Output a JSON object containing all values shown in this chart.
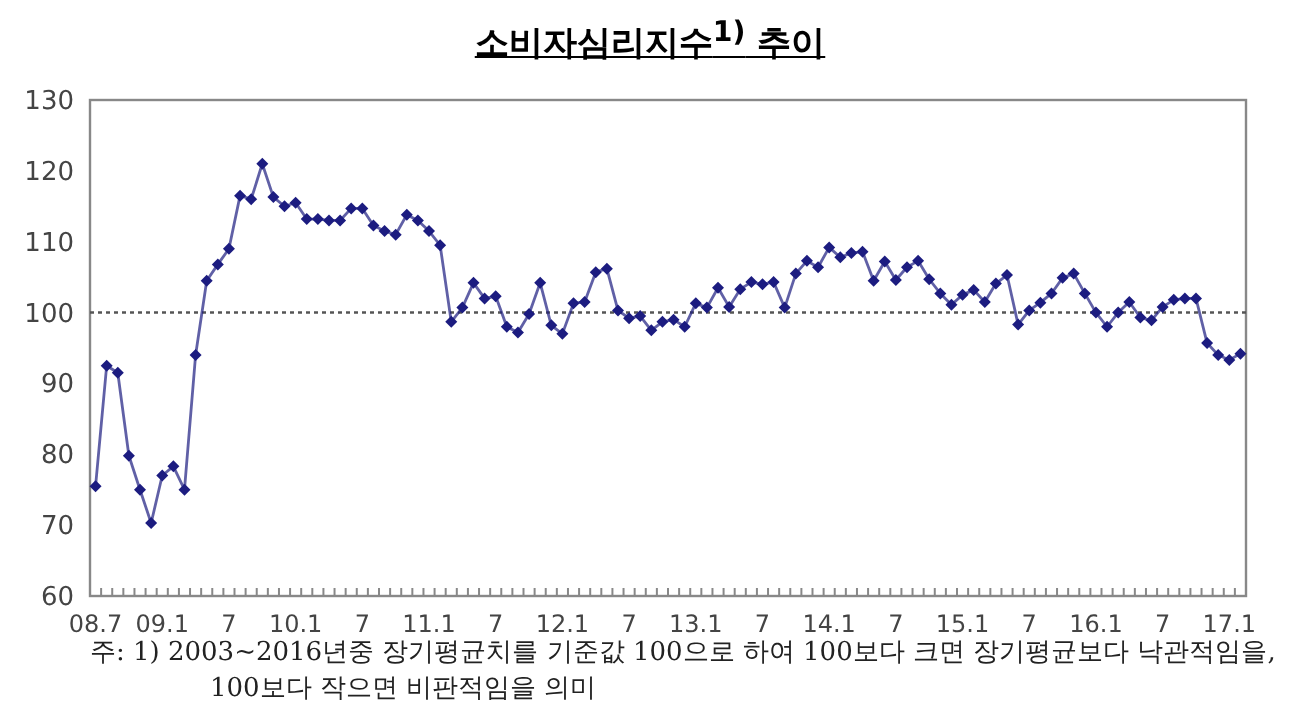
{
  "chart_data": {
    "type": "line",
    "title": "소비자심리지수$^{1)}$ 추이",
    "categories": [
      "08.7",
      null,
      null,
      null,
      null,
      null,
      "09.1",
      null,
      null,
      null,
      null,
      null,
      "7",
      null,
      null,
      null,
      null,
      null,
      "10.1",
      null,
      null,
      null,
      null,
      null,
      "7",
      null,
      null,
      null,
      null,
      null,
      "11.1",
      null,
      null,
      null,
      null,
      null,
      "7",
      null,
      null,
      null,
      null,
      null,
      "12.1",
      null,
      null,
      null,
      null,
      null,
      "7",
      null,
      null,
      null,
      null,
      null,
      "13.1",
      null,
      null,
      null,
      null,
      null,
      "7",
      null,
      null,
      null,
      null,
      null,
      "14.1",
      null,
      null,
      null,
      null,
      null,
      "7",
      null,
      null,
      null,
      null,
      null,
      "15.1",
      null,
      null,
      null,
      null,
      null,
      "7",
      null,
      null,
      null,
      null,
      null,
      "16.1",
      null,
      null,
      null,
      null,
      null,
      "7",
      null,
      null,
      null,
      null,
      null,
      "17.1",
      null
    ],
    "series": [
      {
        "color": "#1c1c80",
        "values": [
          75.5,
          92.5,
          91.5,
          79.8,
          75,
          70.3,
          77,
          78.3,
          75,
          94,
          104.5,
          106.8,
          109,
          116.5,
          116,
          121,
          116.3,
          115,
          115.5,
          113.2,
          113.2,
          113,
          113,
          114.7,
          114.7,
          112.3,
          111.5,
          111,
          113.8,
          113,
          111.5,
          109.5,
          98.7,
          100.7,
          104.2,
          102,
          102.3,
          98,
          97.2,
          99.8,
          104.2,
          98.2,
          97,
          101.3,
          101.5,
          105.7,
          106.2,
          100.3,
          99.2,
          99.5,
          97.5,
          98.7,
          99,
          98,
          101.3,
          100.7,
          103.5,
          100.8,
          103.3,
          104.3,
          104,
          104.3,
          100.7,
          105.5,
          107.3,
          106.4,
          109.2,
          107.8,
          108.4,
          108.6,
          104.5,
          107.2,
          104.6,
          106.4,
          107.3,
          104.7,
          102.7,
          101.1,
          102.5,
          103.2,
          101.5,
          104.1,
          105.3,
          98.3,
          100.3,
          101.4,
          102.7,
          104.9,
          105.5,
          102.7,
          100,
          98,
          100,
          101.5,
          99.3,
          98.9,
          100.8,
          101.8,
          102,
          102,
          95.7,
          94,
          93.3,
          94.2
        ]
      }
    ],
    "ylim": [
      60,
      130
    ],
    "yticks": [
      60,
      70,
      80,
      90,
      100,
      110,
      120,
      130
    ],
    "ref_lines": [
      {
        "axis": "y",
        "value": 100,
        "line_style": "dotted",
        "color": "#555555"
      }
    ],
    "marker": "diamond",
    "line_style": "solid",
    "grid": false,
    "annotations": [
      "주: 1) 2003~2016년중 장기평균치를 기준값 100으로 하여 100보다 크면 장기평균보다 낙관적임을, 100보다 작으면 비판적임을 의미"
    ]
  }
}
